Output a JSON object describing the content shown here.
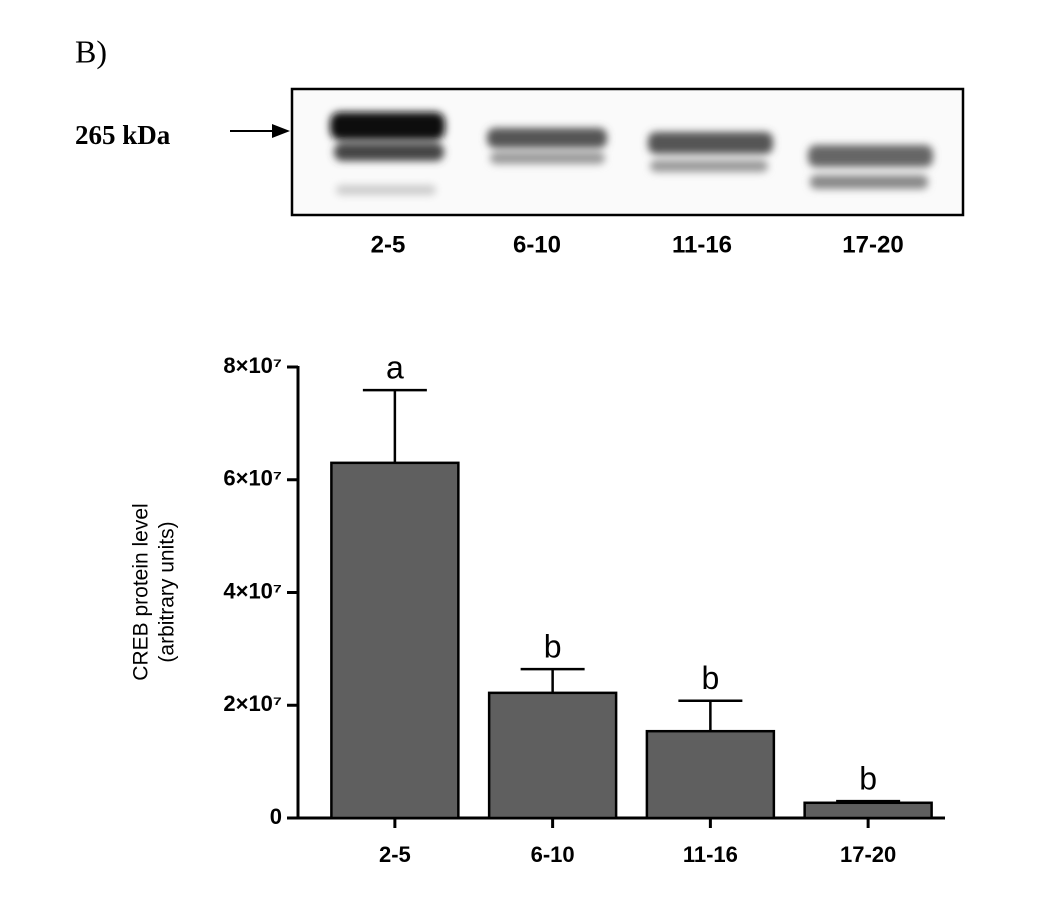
{
  "chart_data": {
    "type": "bar",
    "panel_label": "B)",
    "blot_marker": "265 kDa",
    "ylabel": [
      "CREB protein level",
      "(arbitrary units)"
    ],
    "categories": [
      "2-5",
      "6-10",
      "11-16",
      "17-20"
    ],
    "values": [
      63000000,
      22200000,
      15400000,
      2700000
    ],
    "errors": [
      12900000,
      4200000,
      5400000,
      300000
    ],
    "annotations": [
      "a",
      "b",
      "b",
      "b"
    ],
    "color": "#5f5f5f",
    "ylim": [
      0,
      80000000
    ],
    "yticks": [
      0,
      {
        "value": 20000000,
        "label": "2×10⁷"
      },
      {
        "value": 40000000,
        "label": "4×10⁷"
      },
      {
        "value": 60000000,
        "label": "6×10⁷"
      },
      {
        "value": 80000000,
        "label": "8×10⁷"
      }
    ]
  }
}
